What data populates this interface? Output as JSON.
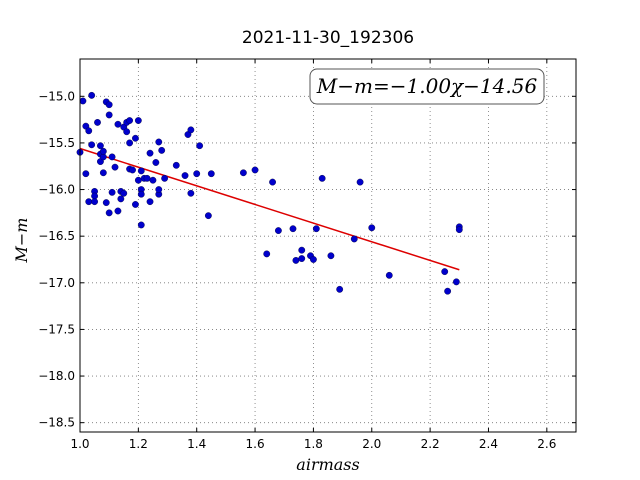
{
  "chart_data": {
    "type": "scatter",
    "title": "2021-11-30_192306",
    "xlabel": "airmass",
    "ylabel": "M−m",
    "xlim": [
      1.0,
      2.7
    ],
    "ylim": [
      -14.6,
      -18.6
    ],
    "y_inverted": true,
    "xticks": [
      "1.0",
      "1.2",
      "1.4",
      "1.6",
      "1.8",
      "2.0",
      "2.2",
      "2.4",
      "2.6"
    ],
    "yticks": [
      "−15.0",
      "−15.5",
      "−16.0",
      "−16.5",
      "−17.0",
      "−17.5",
      "−18.0",
      "−18.5"
    ],
    "grid": true,
    "annotation": "M−m=−1.00χ−14.56",
    "colors": {
      "points": "#0000cc",
      "fit": "#dd0000"
    },
    "fit": {
      "slope": -1.0,
      "intercept": -14.56,
      "x_range": [
        1.0,
        2.3
      ]
    },
    "points": [
      {
        "x": 1.0,
        "y": -15.6
      },
      {
        "x": 1.01,
        "y": -15.05
      },
      {
        "x": 1.02,
        "y": -15.32
      },
      {
        "x": 1.03,
        "y": -15.37
      },
      {
        "x": 1.02,
        "y": -15.83
      },
      {
        "x": 1.03,
        "y": -16.13
      },
      {
        "x": 1.04,
        "y": -15.52
      },
      {
        "x": 1.04,
        "y": -14.99
      },
      {
        "x": 1.05,
        "y": -16.02
      },
      {
        "x": 1.05,
        "y": -16.07
      },
      {
        "x": 1.05,
        "y": -16.13
      },
      {
        "x": 1.06,
        "y": -15.28
      },
      {
        "x": 1.07,
        "y": -15.53
      },
      {
        "x": 1.07,
        "y": -15.62
      },
      {
        "x": 1.07,
        "y": -15.7
      },
      {
        "x": 1.08,
        "y": -15.65
      },
      {
        "x": 1.08,
        "y": -15.59
      },
      {
        "x": 1.08,
        "y": -15.82
      },
      {
        "x": 1.09,
        "y": -16.14
      },
      {
        "x": 1.09,
        "y": -15.06
      },
      {
        "x": 1.1,
        "y": -15.09
      },
      {
        "x": 1.1,
        "y": -15.2
      },
      {
        "x": 1.1,
        "y": -16.25
      },
      {
        "x": 1.11,
        "y": -16.03
      },
      {
        "x": 1.11,
        "y": -15.65
      },
      {
        "x": 1.12,
        "y": -15.76
      },
      {
        "x": 1.13,
        "y": -16.23
      },
      {
        "x": 1.13,
        "y": -15.3
      },
      {
        "x": 1.14,
        "y": -16.1
      },
      {
        "x": 1.14,
        "y": -16.02
      },
      {
        "x": 1.15,
        "y": -16.04
      },
      {
        "x": 1.15,
        "y": -15.33
      },
      {
        "x": 1.16,
        "y": -15.28
      },
      {
        "x": 1.16,
        "y": -15.38
      },
      {
        "x": 1.17,
        "y": -15.26
      },
      {
        "x": 1.17,
        "y": -15.78
      },
      {
        "x": 1.17,
        "y": -15.5
      },
      {
        "x": 1.18,
        "y": -15.79
      },
      {
        "x": 1.19,
        "y": -15.45
      },
      {
        "x": 1.19,
        "y": -16.16
      },
      {
        "x": 1.2,
        "y": -15.9
      },
      {
        "x": 1.2,
        "y": -15.26
      },
      {
        "x": 1.21,
        "y": -16.38
      },
      {
        "x": 1.21,
        "y": -16.0
      },
      {
        "x": 1.21,
        "y": -16.05
      },
      {
        "x": 1.22,
        "y": -15.88
      },
      {
        "x": 1.21,
        "y": -15.8
      },
      {
        "x": 1.23,
        "y": -15.88
      },
      {
        "x": 1.24,
        "y": -15.61
      },
      {
        "x": 1.24,
        "y": -16.13
      },
      {
        "x": 1.25,
        "y": -15.9
      },
      {
        "x": 1.26,
        "y": -15.71
      },
      {
        "x": 1.27,
        "y": -15.49
      },
      {
        "x": 1.27,
        "y": -16.05
      },
      {
        "x": 1.27,
        "y": -16.0
      },
      {
        "x": 1.28,
        "y": -15.58
      },
      {
        "x": 1.29,
        "y": -15.88
      },
      {
        "x": 1.33,
        "y": -15.74
      },
      {
        "x": 1.36,
        "y": -15.85
      },
      {
        "x": 1.37,
        "y": -15.41
      },
      {
        "x": 1.38,
        "y": -15.36
      },
      {
        "x": 1.38,
        "y": -16.04
      },
      {
        "x": 1.4,
        "y": -15.83
      },
      {
        "x": 1.41,
        "y": -15.53
      },
      {
        "x": 1.44,
        "y": -16.28
      },
      {
        "x": 1.45,
        "y": -15.83
      },
      {
        "x": 1.56,
        "y": -15.82
      },
      {
        "x": 1.6,
        "y": -15.79
      },
      {
        "x": 1.64,
        "y": -16.69
      },
      {
        "x": 1.66,
        "y": -15.92
      },
      {
        "x": 1.68,
        "y": -16.44
      },
      {
        "x": 1.73,
        "y": -16.42
      },
      {
        "x": 1.74,
        "y": -16.76
      },
      {
        "x": 1.76,
        "y": -16.74
      },
      {
        "x": 1.76,
        "y": -16.65
      },
      {
        "x": 1.79,
        "y": -16.71
      },
      {
        "x": 1.8,
        "y": -16.75
      },
      {
        "x": 1.81,
        "y": -16.42
      },
      {
        "x": 1.83,
        "y": -15.88
      },
      {
        "x": 1.86,
        "y": -16.71
      },
      {
        "x": 1.89,
        "y": -17.07
      },
      {
        "x": 1.94,
        "y": -16.53
      },
      {
        "x": 1.96,
        "y": -15.92
      },
      {
        "x": 2.0,
        "y": -16.41
      },
      {
        "x": 2.06,
        "y": -16.92
      },
      {
        "x": 2.25,
        "y": -16.88
      },
      {
        "x": 2.26,
        "y": -17.09
      },
      {
        "x": 2.29,
        "y": -16.99
      },
      {
        "x": 2.3,
        "y": -16.4
      },
      {
        "x": 2.3,
        "y": -16.43
      }
    ]
  }
}
